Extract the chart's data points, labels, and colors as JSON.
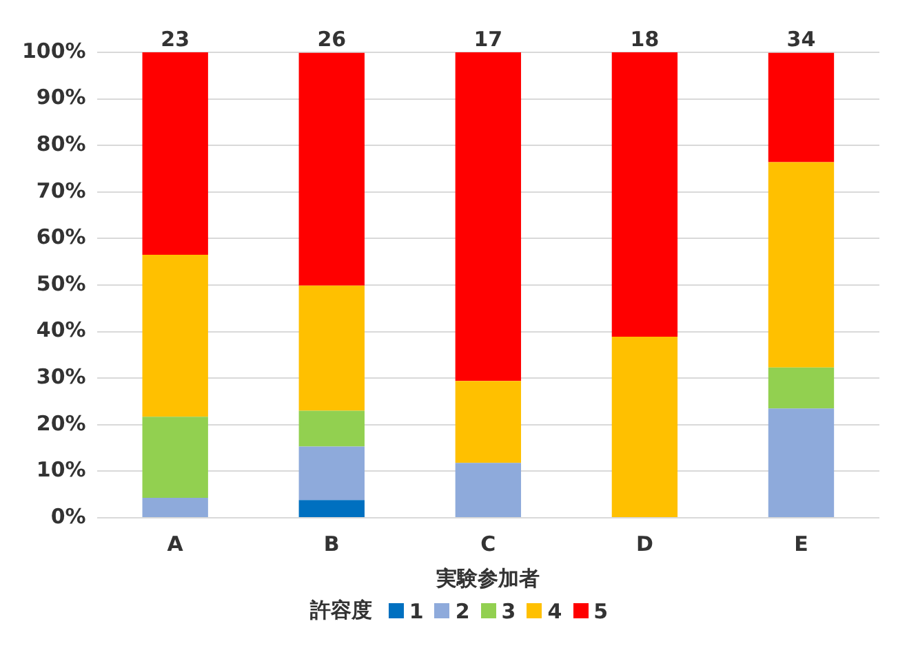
{
  "chart_data": {
    "type": "bar",
    "stacked": true,
    "xlabel": "実験参加者",
    "legend_title": "許容度",
    "legend": "bottom",
    "grid": "y",
    "categories": [
      "A",
      "B",
      "C",
      "D",
      "E"
    ],
    "series": [
      {
        "name": "1",
        "color": "#0070c0",
        "values": [
          0,
          3.8,
          0,
          0,
          0
        ]
      },
      {
        "name": "2",
        "color": "#8eaadb",
        "values": [
          4.3,
          11.5,
          11.8,
          0,
          23.5
        ]
      },
      {
        "name": "3",
        "color": "#92d050",
        "values": [
          17.4,
          7.7,
          0,
          0,
          8.8
        ]
      },
      {
        "name": "4",
        "color": "#ffc000",
        "values": [
          34.8,
          26.9,
          17.6,
          38.9,
          44.1
        ]
      },
      {
        "name": "5",
        "color": "#ff0000",
        "values": [
          43.5,
          50,
          70.6,
          61.1,
          23.5
        ]
      }
    ],
    "annotations": [
      {
        "text": "23",
        "x": "A",
        "y": 100
      },
      {
        "text": "26",
        "x": "B",
        "y": 100
      },
      {
        "text": "17",
        "x": "C",
        "y": 100
      },
      {
        "text": "18",
        "x": "D",
        "y": 100
      },
      {
        "text": "34",
        "x": "E",
        "y": 100
      }
    ],
    "ylim": [
      0,
      100
    ],
    "yticks": [
      {
        "value": 0,
        "label": "0%"
      },
      {
        "value": 10,
        "label": "10%"
      },
      {
        "value": 20,
        "label": "20%"
      },
      {
        "value": 30,
        "label": "30%"
      },
      {
        "value": 40,
        "label": "40%"
      },
      {
        "value": 50,
        "label": "50%"
      },
      {
        "value": 60,
        "label": "60%"
      },
      {
        "value": 70,
        "label": "70%"
      },
      {
        "value": 80,
        "label": "80%"
      },
      {
        "value": 90,
        "label": "90%"
      },
      {
        "value": 100,
        "label": "100%"
      }
    ]
  }
}
